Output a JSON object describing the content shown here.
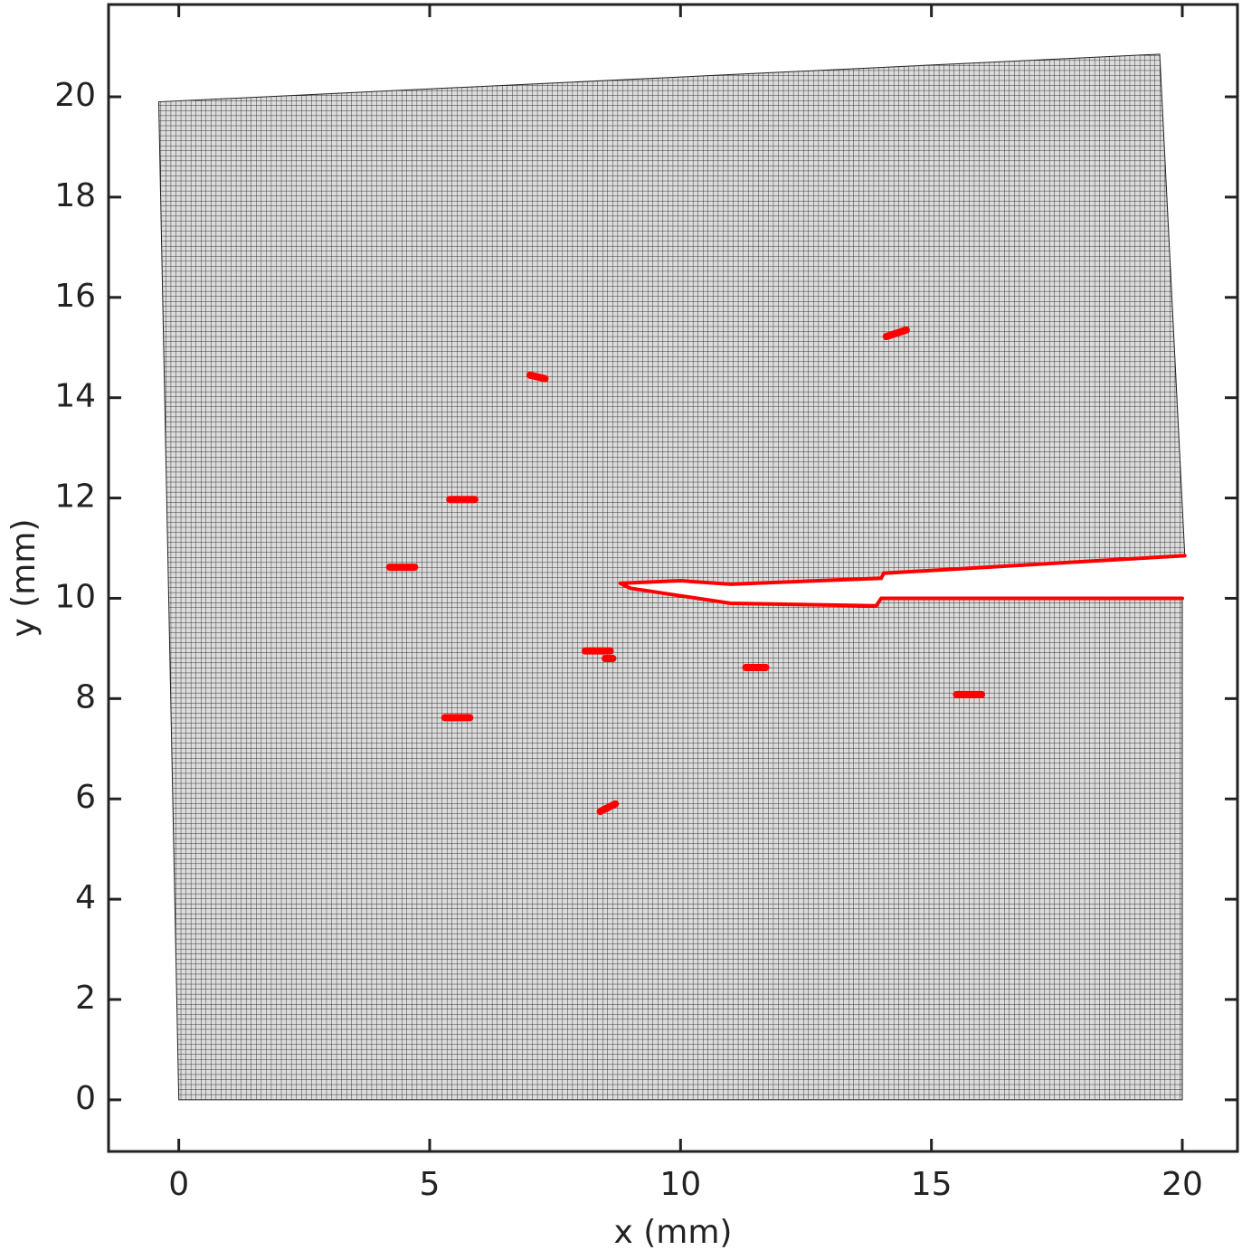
{
  "chart_data": {
    "type": "line",
    "xlabel": "x (mm)",
    "ylabel": "y (mm)",
    "xlim": [
      -1.4,
      21.1
    ],
    "ylim": [
      -1.03,
      21.84
    ],
    "xticks": [
      0,
      5,
      10,
      15,
      20
    ],
    "yticks": [
      0,
      2,
      4,
      6,
      8,
      10,
      12,
      14,
      16,
      18,
      20
    ],
    "mesh": {
      "color": "#dcdcdc",
      "x": [
        0,
        20,
        20,
        14,
        13.9,
        11,
        10,
        9,
        8.8,
        10,
        11,
        14,
        14.05,
        20.05,
        19.55,
        -0.4
      ],
      "y": [
        0,
        0,
        10,
        10,
        9.85,
        9.9,
        10.05,
        10.2,
        10.3,
        10.35,
        10.28,
        10.4,
        10.5,
        10.85,
        20.85,
        19.9
      ]
    },
    "series": [
      {
        "color": "#ff0000",
        "x": [
          8.8,
          9,
          10,
          11,
          13.9,
          14,
          20
        ],
        "y": [
          10.3,
          10.2,
          10.05,
          9.9,
          9.85,
          10,
          10
        ]
      },
      {
        "color": "#ff0000",
        "x": [
          8.8,
          10,
          11,
          14,
          14.05,
          20.05
        ],
        "y": [
          10.3,
          10.35,
          10.28,
          10.4,
          10.5,
          10.85
        ]
      },
      {
        "color": "#ff0000",
        "x": [
          4.2,
          4.7
        ],
        "y": [
          10.62,
          10.62
        ]
      },
      {
        "color": "#ff0000",
        "x": [
          5.4,
          5.9
        ],
        "y": [
          11.97,
          11.97
        ]
      },
      {
        "color": "#ff0000",
        "x": [
          7.0,
          7.3
        ],
        "y": [
          14.45,
          14.38
        ]
      },
      {
        "color": "#ff0000",
        "x": [
          14.1,
          14.5
        ],
        "y": [
          15.22,
          15.35
        ]
      },
      {
        "color": "#ff0000",
        "x": [
          5.3,
          5.8
        ],
        "y": [
          7.62,
          7.62
        ]
      },
      {
        "color": "#ff0000",
        "x": [
          8.1,
          8.6
        ],
        "y": [
          8.95,
          8.95
        ]
      },
      {
        "color": "#ff0000",
        "x": [
          8.5,
          8.65
        ],
        "y": [
          8.8,
          8.8
        ]
      },
      {
        "color": "#ff0000",
        "x": [
          11.3,
          11.7
        ],
        "y": [
          8.62,
          8.62
        ]
      },
      {
        "color": "#ff0000",
        "x": [
          15.5,
          16.0
        ],
        "y": [
          8.08,
          8.08
        ]
      },
      {
        "color": "#ff0000",
        "x": [
          8.4,
          8.7
        ],
        "y": [
          5.75,
          5.9
        ]
      }
    ]
  }
}
